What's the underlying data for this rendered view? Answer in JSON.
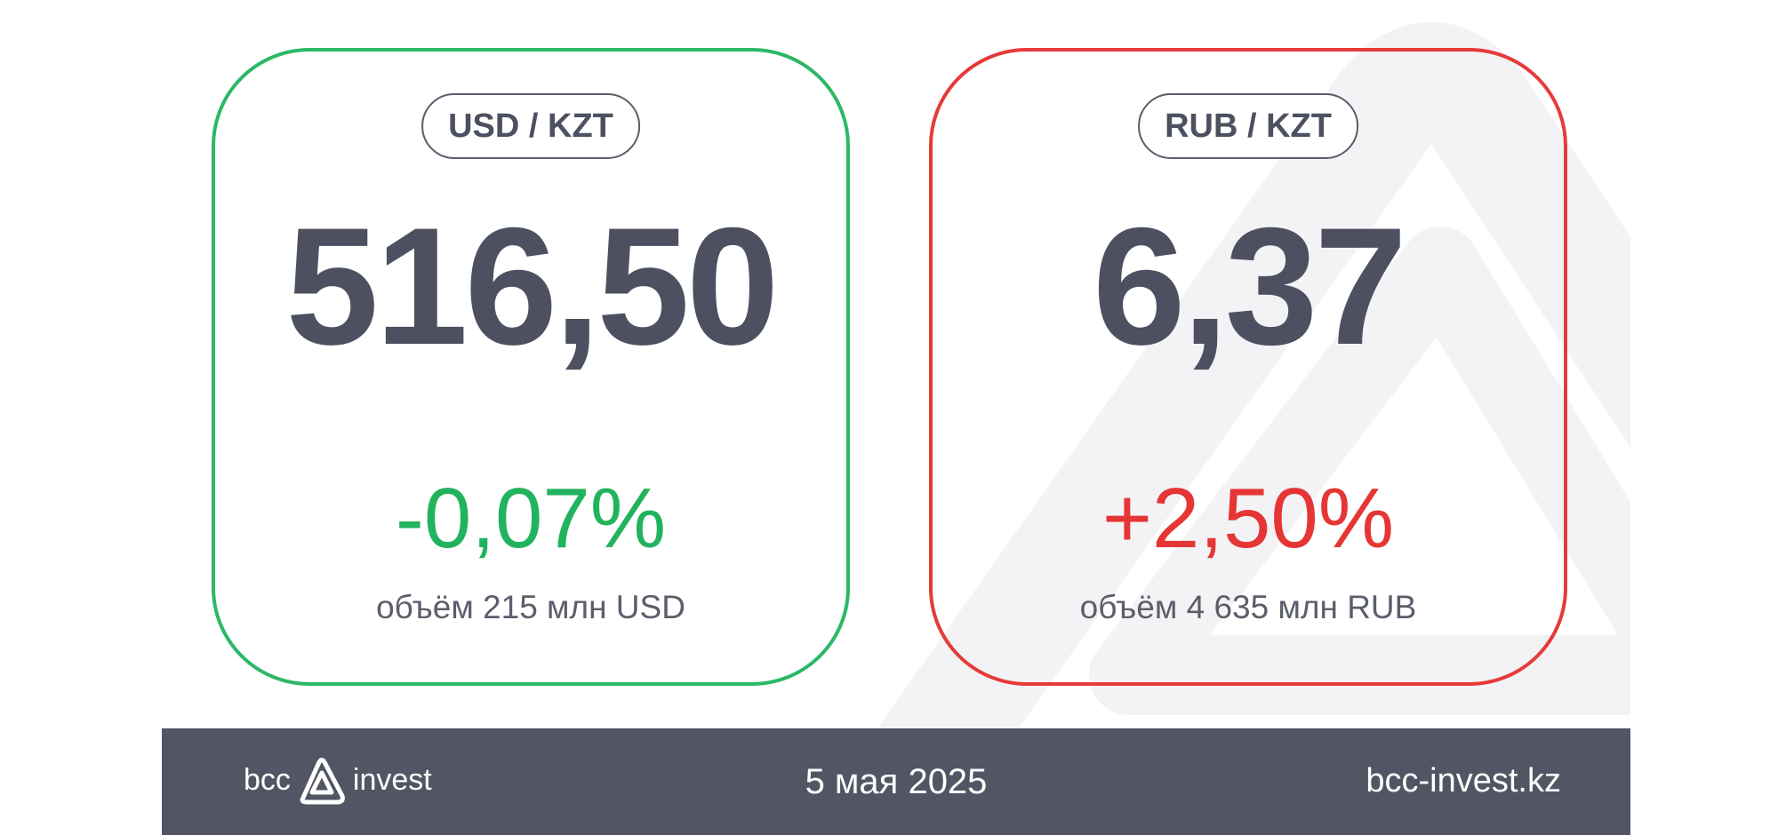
{
  "cards": [
    {
      "pair": "USD / KZT",
      "rate": "516,50",
      "change": "-0,07%",
      "volume": "объём 215 млн USD",
      "accent": "#2bb867"
    },
    {
      "pair": "RUB / KZT",
      "rate": "6,37",
      "change": "+2,50%",
      "volume": "объём 4 635 млн RUB",
      "accent": "#e63a3a"
    }
  ],
  "footer": {
    "logo_left": "bcc",
    "logo_right": "invest",
    "logo_icon": "bcc-triangle-logo-icon",
    "date": "5 мая 2025",
    "website": "bcc-invest.kz",
    "background": "#525563"
  }
}
